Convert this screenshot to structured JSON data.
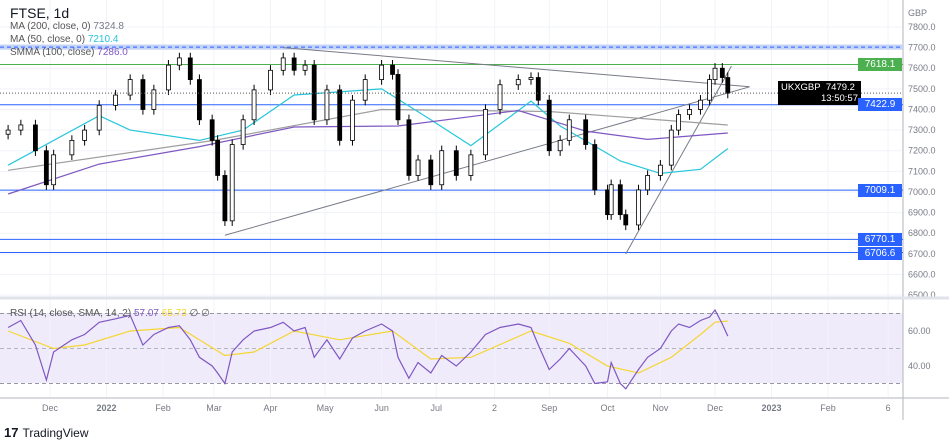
{
  "header": {
    "title": "FTSE, 1d"
  },
  "legend": {
    "ma200": {
      "label": "MA (200, close, 0)",
      "value": "7324.8",
      "color": "#9e9e9e"
    },
    "ma50": {
      "label": "MA (50, close, 0)",
      "value": "7210.4",
      "color": "#26c6da"
    },
    "smma100": {
      "label": "SMMA (100, close)",
      "value": "7286.0",
      "color": "#7e57c2"
    },
    "rsi": {
      "label": "RSI (14, close, SMA, 14, 2)",
      "value": "57.07",
      "sma": "65.73",
      "extra": "∅ ∅"
    }
  },
  "price_tags": {
    "currency": "GBP",
    "symbol": "UKXGBP",
    "last": "7479.2",
    "countdown": "13:50:57",
    "levels": [
      {
        "value": "7618.1",
        "color": "#4caf50"
      },
      {
        "value": "7422.9",
        "color": "#2962ff"
      },
      {
        "value": "7009.1",
        "color": "#2962ff"
      },
      {
        "value": "6770.1",
        "color": "#2962ff"
      },
      {
        "value": "6706.6",
        "color": "#2962ff"
      }
    ]
  },
  "footer": {
    "brand": "TradingView"
  },
  "chart_data": {
    "type": "candlestick",
    "symbol": "FTSE",
    "interval": "1d",
    "currency": "GBP",
    "y_ticks": [
      7800,
      7700,
      7600,
      7500,
      7400,
      7300,
      7200,
      7100,
      7000,
      6900,
      6800,
      6700,
      6600,
      6500
    ],
    "ylim": [
      6500,
      7800
    ],
    "x_ticks": [
      {
        "label": "Dec",
        "date": "2021-12-01"
      },
      {
        "label": "2022",
        "date": "2022-01-01"
      },
      {
        "label": "Feb",
        "date": "2022-02-01"
      },
      {
        "label": "Mar",
        "date": "2022-03-01"
      },
      {
        "label": "Apr",
        "date": "2022-04-01"
      },
      {
        "label": "May",
        "date": "2022-05-01"
      },
      {
        "label": "Jun",
        "date": "2022-06-01"
      },
      {
        "label": "Jul",
        "date": "2022-07-01"
      },
      {
        "label": "2",
        "date": "2022-08-02"
      },
      {
        "label": "Sep",
        "date": "2022-09-01"
      },
      {
        "label": "Oct",
        "date": "2022-10-03"
      },
      {
        "label": "Nov",
        "date": "2022-11-01"
      },
      {
        "label": "Dec",
        "date": "2022-12-01"
      },
      {
        "label": "2023",
        "date": "2023-01-01"
      },
      {
        "label": "Feb",
        "date": "2023-02-01"
      },
      {
        "label": "6",
        "date": "2023-03-06"
      }
    ],
    "closes": [
      [
        "2021-11-08",
        7300
      ],
      [
        "2021-11-15",
        7325
      ],
      [
        "2021-11-23",
        7200
      ],
      [
        "2021-11-29",
        7035
      ],
      [
        "2021-12-03",
        7180
      ],
      [
        "2021-12-13",
        7250
      ],
      [
        "2021-12-20",
        7300
      ],
      [
        "2021-12-28",
        7420
      ],
      [
        "2022-01-06",
        7470
      ],
      [
        "2022-01-14",
        7545
      ],
      [
        "2022-01-21",
        7400
      ],
      [
        "2022-01-27",
        7495
      ],
      [
        "2022-02-04",
        7615
      ],
      [
        "2022-02-10",
        7650
      ],
      [
        "2022-02-16",
        7545
      ],
      [
        "2022-02-21",
        7350
      ],
      [
        "2022-02-28",
        7250
      ],
      [
        "2022-03-03",
        7080
      ],
      [
        "2022-03-07",
        6860
      ],
      [
        "2022-03-11",
        7230
      ],
      [
        "2022-03-17",
        7350
      ],
      [
        "2022-03-23",
        7495
      ],
      [
        "2022-04-01",
        7590
      ],
      [
        "2022-04-08",
        7650
      ],
      [
        "2022-04-14",
        7590
      ],
      [
        "2022-04-20",
        7615
      ],
      [
        "2022-04-25",
        7350
      ],
      [
        "2022-05-02",
        7495
      ],
      [
        "2022-05-09",
        7250
      ],
      [
        "2022-05-16",
        7445
      ],
      [
        "2022-05-23",
        7545
      ],
      [
        "2022-06-01",
        7615
      ],
      [
        "2022-06-07",
        7570
      ],
      [
        "2022-06-10",
        7350
      ],
      [
        "2022-06-16",
        7080
      ],
      [
        "2022-06-21",
        7155
      ],
      [
        "2022-06-28",
        7035
      ],
      [
        "2022-07-04",
        7200
      ],
      [
        "2022-07-12",
        7080
      ],
      [
        "2022-07-20",
        7180
      ],
      [
        "2022-07-28",
        7400
      ],
      [
        "2022-08-05",
        7520
      ],
      [
        "2022-08-15",
        7545
      ],
      [
        "2022-08-22",
        7555
      ],
      [
        "2022-08-26",
        7445
      ],
      [
        "2022-09-01",
        7200
      ],
      [
        "2022-09-07",
        7250
      ],
      [
        "2022-09-12",
        7350
      ],
      [
        "2022-09-21",
        7230
      ],
      [
        "2022-09-26",
        7010
      ],
      [
        "2022-10-03",
        6890
      ],
      [
        "2022-10-05",
        7035
      ],
      [
        "2022-10-10",
        6890
      ],
      [
        "2022-10-13",
        6840
      ],
      [
        "2022-10-20",
        7010
      ],
      [
        "2022-10-25",
        7080
      ],
      [
        "2022-11-01",
        7130
      ],
      [
        "2022-11-07",
        7300
      ],
      [
        "2022-11-11",
        7375
      ],
      [
        "2022-11-17",
        7400
      ],
      [
        "2022-11-23",
        7445
      ],
      [
        "2022-11-28",
        7545
      ],
      [
        "2022-12-01",
        7600
      ],
      [
        "2022-12-05",
        7555
      ],
      [
        "2022-12-08",
        7479.2
      ]
    ],
    "ma200": [
      [
        "2021-11-08",
        7105
      ],
      [
        "2022-03-01",
        7250
      ],
      [
        "2022-06-01",
        7400
      ],
      [
        "2022-09-01",
        7390
      ],
      [
        "2022-12-08",
        7324.8
      ]
    ],
    "ma50": [
      [
        "2021-11-08",
        7130
      ],
      [
        "2021-12-28",
        7370
      ],
      [
        "2022-01-14",
        7300
      ],
      [
        "2022-02-21",
        7250
      ],
      [
        "2022-03-17",
        7300
      ],
      [
        "2022-04-14",
        7470
      ],
      [
        "2022-06-01",
        7500
      ],
      [
        "2022-06-28",
        7350
      ],
      [
        "2022-07-20",
        7225
      ],
      [
        "2022-08-22",
        7440
      ],
      [
        "2022-09-07",
        7320
      ],
      [
        "2022-10-10",
        7150
      ],
      [
        "2022-11-01",
        7090
      ],
      [
        "2022-11-23",
        7110
      ],
      [
        "2022-12-08",
        7210.4
      ]
    ],
    "smma100": [
      [
        "2021-11-08",
        6990
      ],
      [
        "2021-12-28",
        7135
      ],
      [
        "2022-02-21",
        7220
      ],
      [
        "2022-04-14",
        7315
      ],
      [
        "2022-06-10",
        7320
      ],
      [
        "2022-08-15",
        7395
      ],
      [
        "2022-09-21",
        7295
      ],
      [
        "2022-10-25",
        7255
      ],
      [
        "2022-12-08",
        7286.0
      ]
    ],
    "horizontal_levels": [
      7618.1,
      7422.9,
      7009.1,
      6770.1,
      6706.6
    ],
    "resistance_band": [
      7690,
      7715
    ],
    "trendlines": [
      {
        "from": [
          "2022-04-08",
          7700
        ],
        "to": [
          "2022-12-20",
          7510
        ]
      },
      {
        "from": [
          "2022-03-07",
          6790
        ],
        "to": [
          "2022-12-20",
          7510
        ]
      },
      {
        "from": [
          "2022-10-13",
          6700
        ],
        "to": [
          "2022-12-10",
          7610
        ]
      }
    ],
    "rsi_panel": {
      "ticks": [
        60,
        40
      ],
      "bands": [
        70,
        30
      ],
      "rsi": [
        [
          "2021-11-08",
          62
        ],
        [
          "2021-11-15",
          66
        ],
        [
          "2021-11-23",
          52
        ],
        [
          "2021-11-29",
          32
        ],
        [
          "2021-12-03",
          48
        ],
        [
          "2021-12-13",
          55
        ],
        [
          "2021-12-20",
          58
        ],
        [
          "2021-12-28",
          65
        ],
        [
          "2022-01-06",
          67
        ],
        [
          "2022-01-14",
          69
        ],
        [
          "2022-01-21",
          52
        ],
        [
          "2022-01-27",
          58
        ],
        [
          "2022-02-04",
          62
        ],
        [
          "2022-02-10",
          63
        ],
        [
          "2022-02-16",
          55
        ],
        [
          "2022-02-21",
          45
        ],
        [
          "2022-02-28",
          40
        ],
        [
          "2022-03-03",
          36
        ],
        [
          "2022-03-07",
          30
        ],
        [
          "2022-03-11",
          48
        ],
        [
          "2022-03-17",
          55
        ],
        [
          "2022-03-23",
          60
        ],
        [
          "2022-04-01",
          62
        ],
        [
          "2022-04-08",
          65
        ],
        [
          "2022-04-14",
          60
        ],
        [
          "2022-04-20",
          62
        ],
        [
          "2022-04-25",
          45
        ],
        [
          "2022-05-02",
          55
        ],
        [
          "2022-05-09",
          44
        ],
        [
          "2022-05-16",
          56
        ],
        [
          "2022-05-23",
          60
        ],
        [
          "2022-06-01",
          64
        ],
        [
          "2022-06-07",
          60
        ],
        [
          "2022-06-10",
          45
        ],
        [
          "2022-06-16",
          33
        ],
        [
          "2022-06-21",
          42
        ],
        [
          "2022-06-28",
          36
        ],
        [
          "2022-07-04",
          46
        ],
        [
          "2022-07-12",
          40
        ],
        [
          "2022-07-20",
          48
        ],
        [
          "2022-07-28",
          58
        ],
        [
          "2022-08-05",
          62
        ],
        [
          "2022-08-15",
          64
        ],
        [
          "2022-08-22",
          62
        ],
        [
          "2022-08-26",
          52
        ],
        [
          "2022-09-01",
          38
        ],
        [
          "2022-09-07",
          44
        ],
        [
          "2022-09-12",
          50
        ],
        [
          "2022-09-21",
          40
        ],
        [
          "2022-09-26",
          30
        ],
        [
          "2022-10-03",
          31
        ],
        [
          "2022-10-05",
          42
        ],
        [
          "2022-10-10",
          30
        ],
        [
          "2022-10-13",
          27
        ],
        [
          "2022-10-20",
          38
        ],
        [
          "2022-10-25",
          45
        ],
        [
          "2022-11-01",
          50
        ],
        [
          "2022-11-07",
          60
        ],
        [
          "2022-11-11",
          64
        ],
        [
          "2022-11-17",
          62
        ],
        [
          "2022-11-23",
          66
        ],
        [
          "2022-11-28",
          68
        ],
        [
          "2022-12-01",
          72
        ],
        [
          "2022-12-05",
          64
        ],
        [
          "2022-12-08",
          57.07
        ]
      ],
      "sma": [
        [
          "2021-11-08",
          60
        ],
        [
          "2021-12-03",
          50
        ],
        [
          "2021-12-20",
          52
        ],
        [
          "2022-01-14",
          60
        ],
        [
          "2022-02-10",
          62
        ],
        [
          "2022-03-07",
          46
        ],
        [
          "2022-03-23",
          48
        ],
        [
          "2022-04-14",
          60
        ],
        [
          "2022-05-09",
          55
        ],
        [
          "2022-06-07",
          60
        ],
        [
          "2022-06-28",
          44
        ],
        [
          "2022-07-20",
          45
        ],
        [
          "2022-08-22",
          60
        ],
        [
          "2022-09-12",
          53
        ],
        [
          "2022-10-03",
          40
        ],
        [
          "2022-10-20",
          36
        ],
        [
          "2022-11-07",
          45
        ],
        [
          "2022-11-23",
          58
        ],
        [
          "2022-12-01",
          65
        ],
        [
          "2022-12-08",
          65.73
        ]
      ]
    }
  }
}
